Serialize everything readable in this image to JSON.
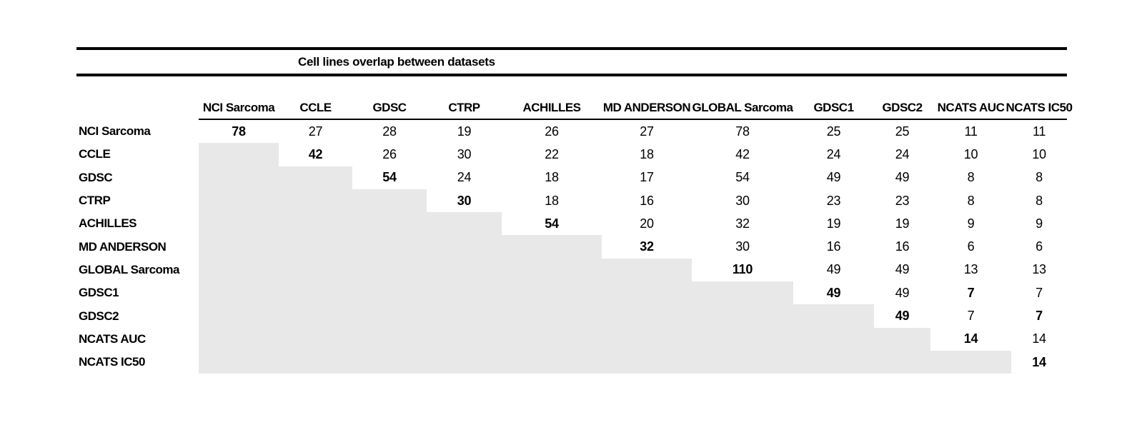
{
  "colors": {
    "shade": "#e8e8e8",
    "rule": "#000000",
    "text": "#000000"
  },
  "chart_data": {
    "type": "table",
    "title": "Cell lines overlap between datasets",
    "columns": [
      "NCI Sarcoma",
      "CCLE",
      "GDSC",
      "CTRP",
      "ACHILLES",
      "MD ANDERSON",
      "GLOBAL Sarcoma",
      "GDSC1",
      "GDSC2",
      "NCATS AUC",
      "NCATS IC50"
    ],
    "rows": [
      {
        "label": "NCI Sarcoma",
        "values": [
          78,
          27,
          28,
          19,
          26,
          27,
          78,
          25,
          25,
          11,
          11
        ]
      },
      {
        "label": "CCLE",
        "values": [
          null,
          42,
          26,
          30,
          22,
          18,
          42,
          24,
          24,
          10,
          10
        ]
      },
      {
        "label": "GDSC",
        "values": [
          null,
          null,
          54,
          24,
          18,
          17,
          54,
          49,
          49,
          8,
          8
        ]
      },
      {
        "label": "CTRP",
        "values": [
          null,
          null,
          null,
          30,
          18,
          16,
          30,
          23,
          23,
          8,
          8
        ]
      },
      {
        "label": "ACHILLES",
        "values": [
          null,
          null,
          null,
          null,
          54,
          20,
          32,
          19,
          19,
          9,
          9
        ]
      },
      {
        "label": "MD ANDERSON",
        "values": [
          null,
          null,
          null,
          null,
          null,
          32,
          30,
          16,
          16,
          6,
          6
        ]
      },
      {
        "label": "GLOBAL Sarcoma",
        "values": [
          null,
          null,
          null,
          null,
          null,
          null,
          110,
          49,
          49,
          13,
          13
        ]
      },
      {
        "label": "GDSC1",
        "values": [
          null,
          null,
          null,
          null,
          null,
          null,
          null,
          49,
          49,
          7,
          7
        ]
      },
      {
        "label": "GDSC2",
        "values": [
          null,
          null,
          null,
          null,
          null,
          null,
          null,
          null,
          49,
          7,
          7
        ]
      },
      {
        "label": "NCATS AUC",
        "values": [
          null,
          null,
          null,
          null,
          null,
          null,
          null,
          null,
          null,
          14,
          14
        ]
      },
      {
        "label": "NCATS IC50",
        "values": [
          null,
          null,
          null,
          null,
          null,
          null,
          null,
          null,
          null,
          null,
          14
        ]
      }
    ],
    "bold_cells": [
      [
        0,
        0
      ],
      [
        1,
        1
      ],
      [
        2,
        2
      ],
      [
        3,
        3
      ],
      [
        4,
        4
      ],
      [
        5,
        5
      ],
      [
        6,
        6
      ],
      [
        7,
        7
      ],
      [
        8,
        8
      ],
      [
        9,
        9
      ],
      [
        10,
        10
      ],
      [
        7,
        9
      ],
      [
        8,
        10
      ]
    ],
    "shading": "lower-triangle",
    "layout_hints": {
      "header_rule": true,
      "double_top_rule": true,
      "no_bottom_rule": true
    }
  }
}
